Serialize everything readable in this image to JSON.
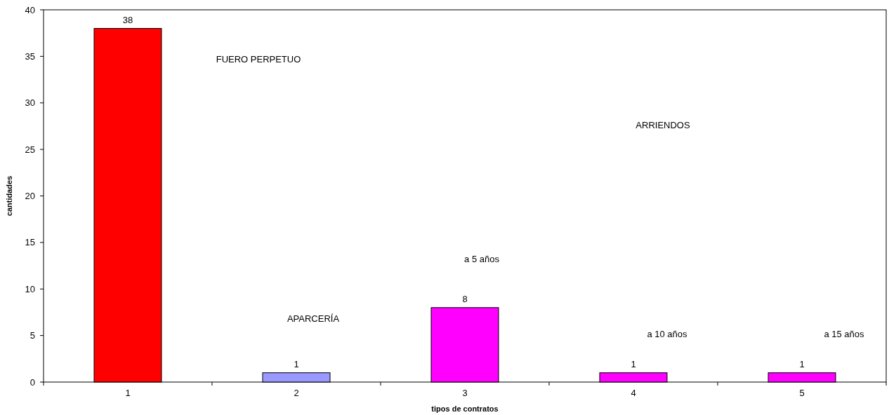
{
  "chart_data": {
    "type": "bar",
    "xlabel": "tipos de contratos",
    "ylabel": "cantidades",
    "categories": [
      "1",
      "2",
      "3",
      "4",
      "5"
    ],
    "values": [
      38,
      1,
      8,
      1,
      1
    ],
    "colors": [
      "#ff0000",
      "#9999ff",
      "#ff00ff",
      "#ff00ff",
      "#ff00ff"
    ],
    "ylim": [
      0,
      40
    ],
    "yticks": [
      0,
      5,
      10,
      15,
      20,
      25,
      30,
      35,
      40
    ],
    "data_labels": true,
    "grid": false,
    "annotations": [
      "FUERO PERPETUO",
      "APARCERÍA",
      "a 5 años",
      "ARRIENDOS",
      "a 10 años",
      "a 15 años"
    ]
  }
}
